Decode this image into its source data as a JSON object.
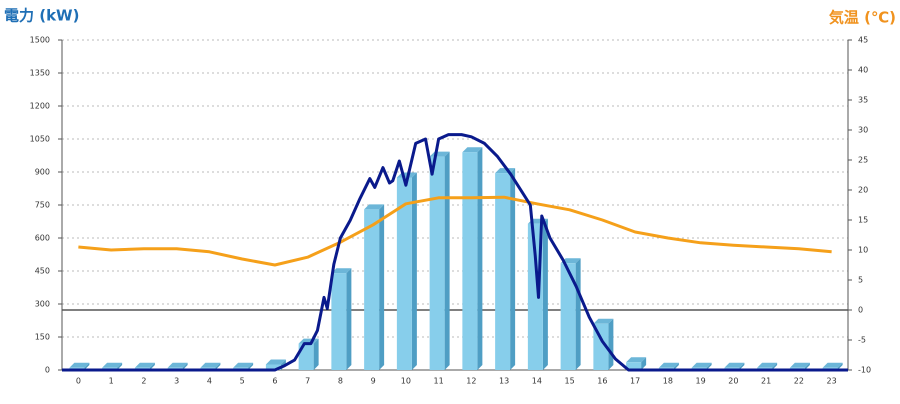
{
  "chart_data": {
    "type": "bar",
    "y_title": "電力 (kW)",
    "y2_title": "気温 (℃)",
    "y_title_color": "#1f6fb5",
    "y2_title_color": "#f0921e",
    "categories": [
      "0",
      "1",
      "2",
      "3",
      "4",
      "5",
      "6",
      "7",
      "8",
      "9",
      "10",
      "11",
      "12",
      "13",
      "14",
      "15",
      "16",
      "17",
      "18",
      "19",
      "20",
      "21",
      "22",
      "23"
    ],
    "ylim": [
      0,
      1500
    ],
    "yticks": [
      0,
      150,
      300,
      450,
      600,
      750,
      900,
      1050,
      1200,
      1350,
      1500
    ],
    "y2lim": [
      -10,
      45
    ],
    "y2ticks": [
      -10,
      -5,
      0,
      5,
      10,
      15,
      20,
      25,
      30,
      35,
      40,
      45
    ],
    "xlim": [
      -0.5,
      23.5
    ],
    "grid": true,
    "series": [
      {
        "type": "bar",
        "color": "#87ceeb",
        "values": [
          10,
          10,
          10,
          10,
          10,
          10,
          25,
          120,
          440,
          730,
          875,
          970,
          990,
          895,
          665,
          485,
          210,
          35,
          10,
          10,
          10,
          10,
          10,
          10
        ]
      },
      {
        "type": "line",
        "axis": "y2",
        "color": "#f5a01a",
        "x": [
          0,
          1,
          2,
          3,
          4,
          5,
          6,
          7,
          8,
          9,
          10,
          11,
          12,
          13,
          14,
          15,
          16,
          17,
          18,
          19,
          20,
          21,
          22,
          23
        ],
        "values": [
          10.5,
          10,
          10.2,
          10.2,
          9.7,
          8.5,
          7.5,
          8.8,
          11.3,
          14.2,
          17.7,
          18.7,
          18.7,
          18.8,
          17.7,
          16.7,
          15,
          13,
          12,
          11.2,
          10.8,
          10.5,
          10.2,
          9.7
        ]
      },
      {
        "type": "line",
        "color": "#0a1a8c",
        "x": [
          -0.5,
          6,
          6.3,
          6.6,
          6.9,
          7.1,
          7.3,
          7.5,
          7.6,
          7.8,
          8,
          8.3,
          8.6,
          8.9,
          9.05,
          9.3,
          9.5,
          9.6,
          9.8,
          10,
          10.3,
          10.6,
          10.8,
          11,
          11.3,
          11.7,
          12,
          12.4,
          12.8,
          13.2,
          13.5,
          13.8,
          13.95,
          14.05,
          14.15,
          14.4,
          14.8,
          15.2,
          15.6,
          16,
          16.4,
          16.8,
          17,
          23.5
        ],
        "values": [
          0,
          0,
          20,
          45,
          120,
          120,
          180,
          330,
          280,
          480,
          600,
          680,
          780,
          870,
          830,
          920,
          850,
          860,
          950,
          840,
          1030,
          1050,
          890,
          1050,
          1070,
          1070,
          1060,
          1030,
          970,
          890,
          820,
          750,
          520,
          330,
          700,
          600,
          500,
          380,
          240,
          130,
          50,
          0,
          0,
          0
        ]
      }
    ]
  }
}
